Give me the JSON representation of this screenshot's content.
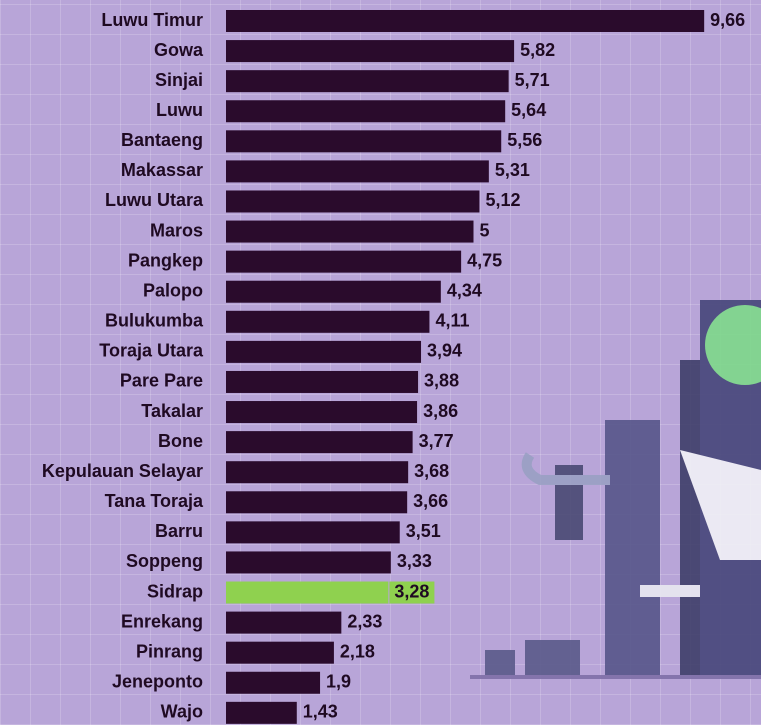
{
  "chart_data": {
    "type": "bar",
    "orientation": "horizontal",
    "categories": [
      "Luwu Timur",
      "Gowa",
      "Sinjai",
      "Luwu",
      "Bantaeng",
      "Makassar",
      "Luwu Utara",
      "Maros",
      "Pangkep",
      "Palopo",
      "Bulukumba",
      "Toraja Utara",
      "Pare Pare",
      "Takalar",
      "Bone",
      "Kepulauan Selayar",
      "Tana Toraja",
      "Barru",
      "Soppeng",
      "Sidrap",
      "Enrekang",
      "Pinrang",
      "Jeneponto",
      "Wajo"
    ],
    "values": [
      9.66,
      5.82,
      5.71,
      5.64,
      5.56,
      5.31,
      5.12,
      5,
      4.75,
      4.34,
      4.11,
      3.94,
      3.88,
      3.86,
      3.77,
      3.68,
      3.66,
      3.51,
      3.33,
      3.28,
      2.33,
      2.18,
      1.9,
      1.43
    ],
    "value_labels": [
      "9,66",
      "5,82",
      "5,71",
      "5,64",
      "5,56",
      "5,31",
      "5,12",
      "5",
      "4,75",
      "4,34",
      "4,11",
      "3,94",
      "3,88",
      "3,86",
      "3,77",
      "3,68",
      "3,66",
      "3,51",
      "3,33",
      "3,28",
      "2,33",
      "2,18",
      "1,9",
      "1,43"
    ],
    "colors": [
      "#2a0b2c",
      "#2a0b2c",
      "#2a0b2c",
      "#2a0b2c",
      "#2a0b2c",
      "#2a0b2c",
      "#2a0b2c",
      "#2a0b2c",
      "#2a0b2c",
      "#2a0b2c",
      "#2a0b2c",
      "#2a0b2c",
      "#2a0b2c",
      "#2a0b2c",
      "#2a0b2c",
      "#2a0b2c",
      "#2a0b2c",
      "#2a0b2c",
      "#2a0b2c",
      "#8fd14f",
      "#2a0b2c",
      "#2a0b2c",
      "#2a0b2c",
      "#2a0b2c"
    ]
  }
}
